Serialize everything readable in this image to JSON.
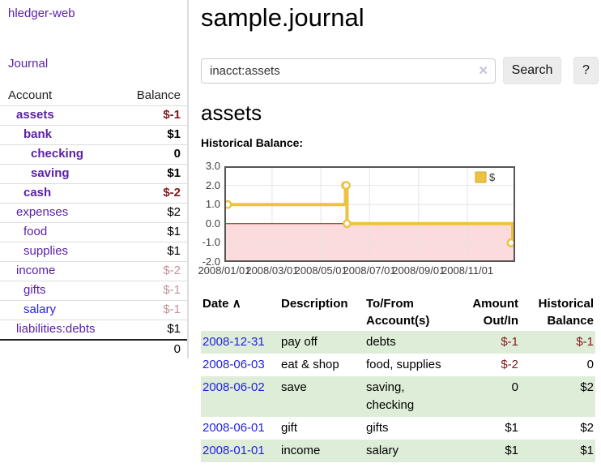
{
  "app": {
    "brand": "hledger-web"
  },
  "sidebar": {
    "nav_journal": "Journal",
    "headers": {
      "account": "Account",
      "balance": "Balance"
    },
    "accounts": [
      {
        "name": "assets",
        "balance": "$-1"
      },
      {
        "name": "bank",
        "balance": "$1"
      },
      {
        "name": "checking",
        "balance": "0"
      },
      {
        "name": "saving",
        "balance": "$1"
      },
      {
        "name": "cash",
        "balance": "$-2"
      },
      {
        "name": "expenses",
        "balance": "$2"
      },
      {
        "name": "food",
        "balance": "$1"
      },
      {
        "name": "supplies",
        "balance": "$1"
      },
      {
        "name": "income",
        "balance": "$-2"
      },
      {
        "name": "gifts",
        "balance": "$-1"
      },
      {
        "name": "salary",
        "balance": "$-1"
      },
      {
        "name": "liabilities:debts",
        "balance": "$1"
      }
    ],
    "total": "0"
  },
  "main": {
    "title": "sample.journal",
    "search": {
      "value": "inacct:assets",
      "clear_icon": "✕",
      "search_button": "Search",
      "help_button": "?"
    },
    "account_heading": "assets",
    "section_heading": "Historical Balance:"
  },
  "chart_data": {
    "type": "line",
    "step": true,
    "title": "Historical Balance:",
    "series": [
      {
        "name": "$",
        "color": "#edc240",
        "points": [
          [
            "2008-01-01",
            1
          ],
          [
            "2008-06-01",
            2
          ],
          [
            "2008-06-02",
            2
          ],
          [
            "2008-06-03",
            0
          ],
          [
            "2008-12-31",
            -1
          ]
        ]
      }
    ],
    "xlim": [
      "2008-01-01",
      "2008-12-31"
    ],
    "ylim": [
      -2,
      3
    ],
    "yticks": [
      "3.0",
      "2.0",
      "1.0",
      "0.0",
      "-1.0",
      "-2.0"
    ],
    "xticks": [
      "2008/01/01",
      "2008/03/01",
      "2008/05/01",
      "2008/07/01",
      "2008/09/01",
      "2008/11/01"
    ],
    "grid": true,
    "legend_position": "top-right",
    "negative_fill": "#fbdbdb",
    "zero_line_color": "#a80000"
  },
  "register": {
    "headers": {
      "date": "Date",
      "sort_icon": "∧",
      "description": "Description",
      "account_l1": "To/From",
      "account_l2": "Account(s)",
      "amount_l1": "Amount",
      "amount_l2": "Out/In",
      "balance_l1": "Historical",
      "balance_l2": "Balance"
    },
    "rows": [
      {
        "date": "2008-12-31",
        "description": "pay off",
        "accounts": "debts",
        "amount": "$-1",
        "balance": "$-1"
      },
      {
        "date": "2008-06-03",
        "description": "eat & shop",
        "accounts": "food, supplies",
        "amount": "$-2",
        "balance": "0"
      },
      {
        "date": "2008-06-02",
        "description": "save",
        "accounts": "saving,",
        "accounts2": "checking",
        "amount": "0",
        "balance": "$2"
      },
      {
        "date": "2008-06-01",
        "description": "gift",
        "accounts": "gifts",
        "amount": "$1",
        "balance": "$2"
      },
      {
        "date": "2008-01-01",
        "description": "income",
        "accounts": "salary",
        "amount": "$1",
        "balance": "$1"
      }
    ]
  },
  "colors": {
    "link_purple": "#5b21a8",
    "link_blue": "#2323e0",
    "negative_strong": "#801b20",
    "negative_muted": "#c4929a",
    "row_green": "#deedd8",
    "series_gold": "#edc240"
  }
}
